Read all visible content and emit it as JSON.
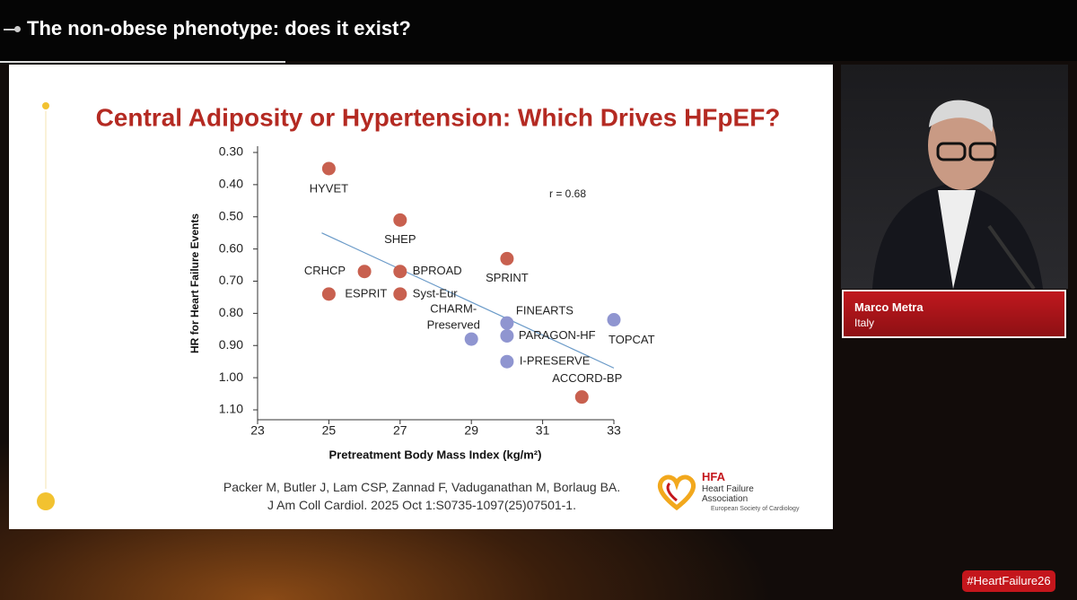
{
  "header": {
    "title": "The non-obese phenotype: does it exist?"
  },
  "chart_data": {
    "type": "scatter",
    "title": "Central Adiposity or Hypertension: Which Drives HFpEF?",
    "xlabel": "Pretreatment Body Mass Index (kg/m²)",
    "ylabel": "HR for Heart Failure Events",
    "x": [
      25,
      27,
      26,
      27,
      25,
      27,
      30,
      30,
      30,
      29,
      33,
      30,
      32.1
    ],
    "values": [
      0.35,
      0.51,
      0.67,
      0.67,
      0.74,
      0.74,
      0.63,
      0.83,
      0.87,
      0.88,
      0.82,
      0.95,
      1.06
    ],
    "point_labels": [
      "HYVET",
      "SHEP",
      "CRHCP",
      "BPROAD",
      "ESPRIT",
      "Syst-Eur",
      "SPRINT",
      "FINEARTS",
      "PARAGON-HF",
      [
        "CHARM-",
        "Preserved"
      ],
      "TOPCAT",
      "I-PRESERVE",
      "ACCORD-BP"
    ],
    "colors": [
      "#c8604f",
      "#c8604f",
      "#c8604f",
      "#c8604f",
      "#c8604f",
      "#c8604f",
      "#c8604f",
      "#8f95d0",
      "#8f95d0",
      "#8f95d0",
      "#8f95d0",
      "#8f95d0",
      "#c8604f"
    ],
    "trendline": {
      "x": [
        24.8,
        33
      ],
      "y": [
        0.55,
        0.97
      ],
      "color": "#6a9ac8"
    },
    "annotation": "r = 0.68",
    "xlim": [
      23,
      33
    ],
    "xticks": [
      23,
      25,
      27,
      29,
      31,
      33
    ],
    "ylim": [
      1.1,
      0.3
    ],
    "yticks": [
      {
        "value": 0.3,
        "label": "0.30"
      },
      {
        "value": 0.4,
        "label": "0.40"
      },
      {
        "value": 0.5,
        "label": "0.50"
      },
      {
        "value": 0.6,
        "label": "0.60"
      },
      {
        "value": 0.7,
        "label": "0.70"
      },
      {
        "value": 0.8,
        "label": "0.80"
      },
      {
        "value": 0.9,
        "label": "0.90"
      },
      {
        "value": 1.0,
        "label": "1.00"
      },
      {
        "value": 1.1,
        "label": "1.10"
      }
    ]
  },
  "citation": {
    "lines": [
      "Packer M, Butler J, Lam CSP, Zannad F, Vaduganathan M, Borlaug BA.",
      "J Am Coll Cardiol. 2025 Oct 1:S0735-1097(25)07501-1."
    ]
  },
  "logo": {
    "title": "HFA",
    "lines": [
      "Heart Failure",
      "Association"
    ],
    "society": "European Society of Cardiology"
  },
  "speaker": {
    "name": "Marco Metra",
    "country": "Italy"
  },
  "hashtag": "#HeartFailure26"
}
